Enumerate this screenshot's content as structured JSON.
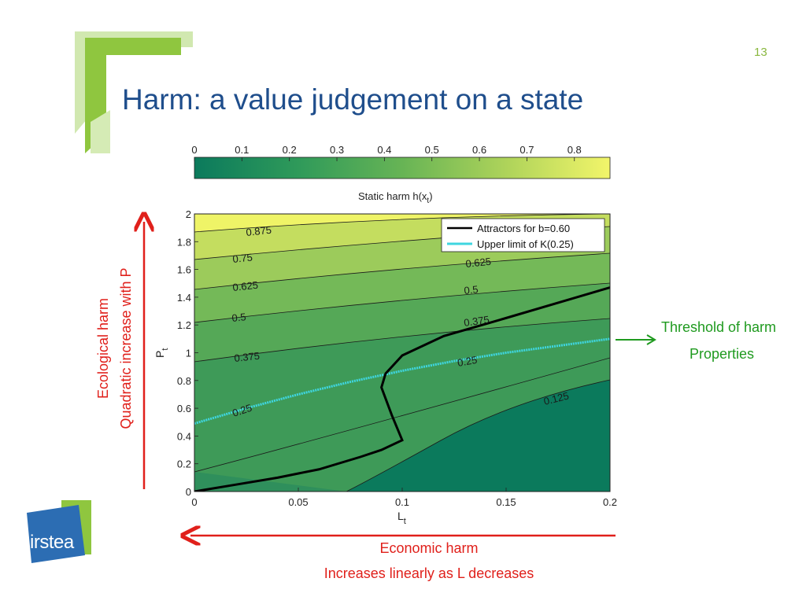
{
  "slide": {
    "number": "13",
    "title": "Harm: a value judgement on a state",
    "logo_text": "irstea"
  },
  "colors": {
    "title": "#1f4e8c",
    "accent_green": "#8ab840",
    "annotation_red": "#e0201b",
    "annotation_green": "#1f9a1f",
    "attractor": "#000000",
    "upper_limit": "#3fd6e0"
  },
  "annotations": {
    "left_line1": "Ecological harm",
    "left_line2": "Quadratic increase with P",
    "bottom_line1": "Economic harm",
    "bottom_line2": "Increases linearly as L decreases",
    "right_line1": "Threshold of harm",
    "right_line2": "Properties"
  },
  "chart_data": {
    "type": "contour",
    "xlabel": "L",
    "xlabel_sub": "t",
    "ylabel": "P",
    "ylabel_sub": "t",
    "xlim": [
      0,
      0.2
    ],
    "ylim": [
      0,
      2
    ],
    "x_ticks": [
      "0",
      "0.05",
      "0.1",
      "0.15",
      "0.2"
    ],
    "y_ticks": [
      "0",
      "0.2",
      "0.4",
      "0.6",
      "0.8",
      "1",
      "1.2",
      "1.4",
      "1.6",
      "1.8",
      "2"
    ],
    "colorbar": {
      "label": "Static harm h(x",
      "label_sub": "t",
      "label_end": ")",
      "ticks": [
        "0",
        "0.1",
        "0.2",
        "0.3",
        "0.4",
        "0.5",
        "0.6",
        "0.7",
        "0.8"
      ],
      "range": [
        0,
        0.875
      ],
      "placement": "top"
    },
    "contour_levels": [
      0.125,
      0.25,
      0.375,
      0.5,
      0.625,
      0.75,
      0.875
    ],
    "contour_labels": [
      "0.875",
      "0.75",
      "0.625",
      "0.5",
      "0.375",
      "0.25",
      "0.125",
      "0.625",
      "0.5",
      "0.375",
      "0.25"
    ],
    "legend": {
      "placement": "top-right",
      "entries": [
        "Attractors for b=0.60",
        "Upper limit of K(0.25)"
      ]
    },
    "series": [
      {
        "name": "Attractors for b=0.60",
        "x": [
          0,
          0.02,
          0.04,
          0.06,
          0.08,
          0.09,
          0.1,
          0.095,
          0.09,
          0.092,
          0.1,
          0.12,
          0.15,
          0.2
        ],
        "y": [
          0,
          0.05,
          0.1,
          0.16,
          0.25,
          0.3,
          0.37,
          0.55,
          0.75,
          0.85,
          0.98,
          1.12,
          1.25,
          1.47
        ]
      },
      {
        "name": "Upper limit of K(0.25)",
        "x": [
          0,
          0.025,
          0.05,
          0.075,
          0.1,
          0.125,
          0.15,
          0.175,
          0.2
        ],
        "y": [
          0.49,
          0.6,
          0.7,
          0.79,
          0.87,
          0.94,
          1.0,
          1.05,
          1.1
        ]
      }
    ]
  }
}
